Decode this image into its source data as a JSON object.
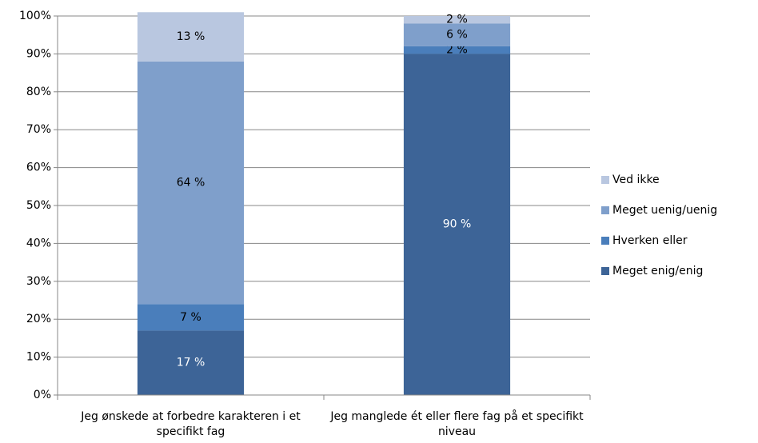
{
  "chart_data": {
    "type": "stacked_bar",
    "categories": [
      "Jeg ønskede at forbedre karakteren i et specifikt fag",
      "Jeg manglede ét eller flere fag på et specifikt niveau"
    ],
    "series": [
      {
        "name": "Meget enig/enig",
        "color": "#3d6497",
        "label_color": "#ffffff",
        "values": [
          17,
          90
        ],
        "value_labels": [
          "17 %",
          "90 %"
        ]
      },
      {
        "name": "Hverken eller",
        "color": "#4a7ebb",
        "label_color": "#000000",
        "values": [
          7,
          2
        ],
        "value_labels": [
          "7 %",
          "2 %"
        ]
      },
      {
        "name": "Meget uenig/uenig",
        "color": "#7f9fcb",
        "label_color": "#000000",
        "values": [
          64,
          6
        ],
        "value_labels": [
          "64 %",
          "6 %"
        ]
      },
      {
        "name": "Ved ikke",
        "color": "#b9c7e0",
        "label_color": "#000000",
        "values": [
          13,
          2
        ],
        "value_labels": [
          "13 %",
          "2 %"
        ]
      }
    ],
    "ylim": [
      0,
      100
    ],
    "yticks": [
      {
        "value": 0,
        "label": "0%"
      },
      {
        "value": 10,
        "label": "10%"
      },
      {
        "value": 20,
        "label": "20%"
      },
      {
        "value": 30,
        "label": "30%"
      },
      {
        "value": 40,
        "label": "40%"
      },
      {
        "value": 50,
        "label": "50%"
      },
      {
        "value": 60,
        "label": "60%"
      },
      {
        "value": 70,
        "label": "70%"
      },
      {
        "value": 80,
        "label": "80%"
      },
      {
        "value": 90,
        "label": "90%"
      },
      {
        "value": 100,
        "label": "100%"
      }
    ],
    "grid": true,
    "legend": "right"
  }
}
